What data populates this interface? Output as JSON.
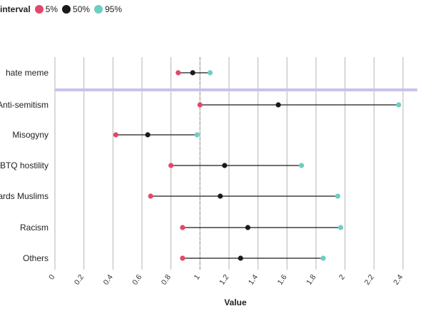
{
  "chart_data": {
    "type": "dot-range",
    "legend": {
      "title": "interval",
      "entries": [
        {
          "label": "5%",
          "color": "#e5466b"
        },
        {
          "label": "50%",
          "color": "#1a1a1a"
        },
        {
          "label": "95%",
          "color": "#6dcdc3"
        }
      ],
      "placement": "top-left"
    },
    "xlabel": "Value",
    "xlim": [
      0,
      2.4
    ],
    "xticks": [
      "0",
      "0.2",
      "0.4",
      "0.6",
      "0.8",
      "1",
      "1.2",
      "1.4",
      "1.6",
      "1.8",
      "2",
      "2.2",
      "2.4"
    ],
    "reference_line": 1,
    "rows": [
      {
        "label": "hate meme",
        "p5": 0.85,
        "p50": 0.95,
        "p95": 1.07
      },
      {
        "label": "Anti-semitism",
        "p5": 1.0,
        "p50": 1.54,
        "p95": 2.37
      },
      {
        "label": "Misogyny",
        "p5": 0.42,
        "p50": 0.64,
        "p95": 0.98
      },
      {
        "label": "GBTQ hostility",
        "p5": 0.8,
        "p50": 1.17,
        "p95": 1.7
      },
      {
        "label": "wards Muslims",
        "p5": 0.66,
        "p50": 1.14,
        "p95": 1.95
      },
      {
        "label": "Racism",
        "p5": 0.88,
        "p50": 1.33,
        "p95": 1.97
      },
      {
        "label": "Others",
        "p5": 0.88,
        "p50": 1.28,
        "p95": 1.85
      }
    ],
    "grid": true
  }
}
